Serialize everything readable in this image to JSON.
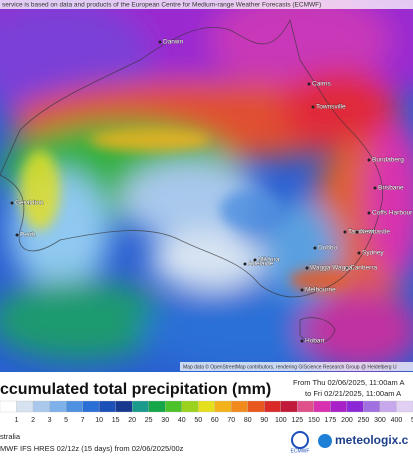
{
  "banner": "service is based on data and products of the European Centre for Medium-range Weather Forecasts (ECMWF)",
  "cities": [
    "Darwin",
    "Cairns",
    "Townsville",
    "Bundaberg",
    "Brisbane",
    "Coffs Harbour",
    "Tamworth",
    "Dubbo",
    "Newcastle",
    "Sydney",
    "Canberra",
    "Wagga Wagga",
    "Mildura",
    "Adelaide",
    "Melbourne",
    "Hobart",
    "Geraldton",
    "Perth"
  ],
  "attribution": "Map data © OpenStreetMap contributors, rendering GIScience Research Group @ Heidelberg U",
  "title": "ccumulated total precipitation (mm)",
  "period": {
    "from": "From Thu 02/06/2025, 11:00am A",
    "to": "to Fri 02/21/2025, 11:00am A"
  },
  "legend": {
    "labels": [
      "1",
      "2",
      "3",
      "5",
      "7",
      "10",
      "15",
      "20",
      "25",
      "30",
      "40",
      "50",
      "60",
      "70",
      "80",
      "90",
      "100",
      "125",
      "150",
      "175",
      "200",
      "250",
      "300",
      "400",
      "5"
    ],
    "colors": [
      "#ffffff",
      "#d6e2f0",
      "#a9c8ec",
      "#7eb0ea",
      "#4f90e0",
      "#2a6fd6",
      "#1d4fb8",
      "#17388f",
      "#1a9a8a",
      "#16a64a",
      "#4cc22a",
      "#9ad21e",
      "#e6e01c",
      "#f4b21a",
      "#f08a1c",
      "#e8581e",
      "#d92a28",
      "#c21a3a",
      "#e0508a",
      "#d830b0",
      "#a820c8",
      "#8a28d8",
      "#a070e0",
      "#c8a8ec",
      "#e2d0f4"
    ]
  },
  "region": "stralia",
  "model": "MWF IFS HRES 02/12z (15 days) from 02/06/2025/00z",
  "logo": "ECMWF",
  "brand": "meteologix.c"
}
